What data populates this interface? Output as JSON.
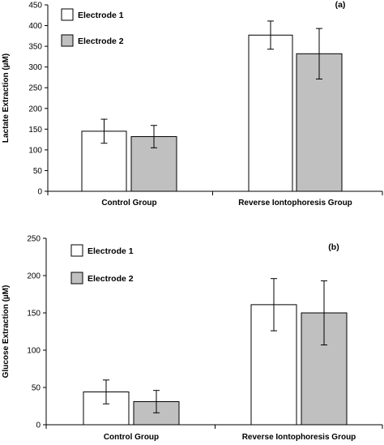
{
  "chart_data": [
    {
      "type": "bar",
      "panel_label": "(a)",
      "ylabel": "Lactate Extraction (µM)",
      "ylim": [
        0,
        450
      ],
      "ytick_step": 50,
      "categories": [
        "Control Group",
        "Reverse Iontophoresis Group"
      ],
      "series": [
        {
          "name": "Electrode 1",
          "color": "#ffffff",
          "values": [
            145,
            377
          ],
          "errors": [
            29,
            34
          ]
        },
        {
          "name": "Electrode 2",
          "color": "#c0c0c0",
          "values": [
            132,
            332
          ],
          "errors": [
            27,
            61
          ]
        }
      ],
      "legend_position": "top-left"
    },
    {
      "type": "bar",
      "panel_label": "(b)",
      "ylabel": "Glucose Extraction (µM)",
      "ylim": [
        0,
        250
      ],
      "ytick_step": 50,
      "categories": [
        "Control Group",
        "Reverse Iontophoresis Group"
      ],
      "series": [
        {
          "name": "Electrode 1",
          "color": "#ffffff",
          "values": [
            44,
            161
          ],
          "errors": [
            16,
            35
          ]
        },
        {
          "name": "Electrode 2",
          "color": "#c0c0c0",
          "values": [
            31,
            150
          ],
          "errors": [
            15,
            43
          ]
        }
      ],
      "legend_position": "top-left"
    }
  ]
}
